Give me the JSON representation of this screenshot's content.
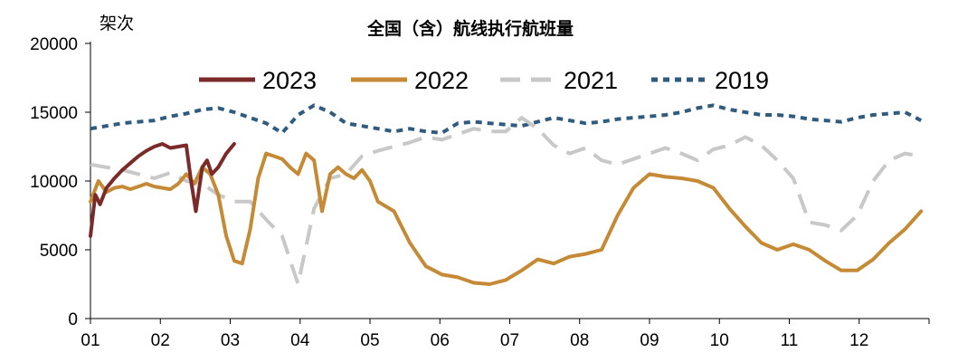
{
  "chart_data": {
    "type": "line",
    "title": "全国（含）航线执行航班量",
    "ylabel": "架次",
    "xlabel": "",
    "ylim": [
      0,
      20000
    ],
    "yticks": [
      0,
      5000,
      10000,
      15000,
      20000
    ],
    "x_tick_labels": [
      "01",
      "02",
      "03",
      "04",
      "05",
      "06",
      "07",
      "08",
      "09",
      "10",
      "11",
      "12"
    ],
    "x_unit": "week",
    "legend_position": "top",
    "grid": false,
    "series": [
      {
        "name": "2023",
        "color": "#7b2a2a",
        "style": "solid",
        "x": [
          0,
          0.3,
          0.6,
          1,
          1.5,
          2,
          2.5,
          3,
          3.5,
          4,
          4.5,
          5,
          5.5,
          6,
          6.3,
          6.6,
          7,
          7.3,
          7.6,
          8,
          8.5,
          9
        ],
        "y": [
          6000,
          9000,
          8300,
          9500,
          10200,
          10800,
          11300,
          11800,
          12200,
          12500,
          12700,
          12400,
          12500,
          12600,
          10000,
          7800,
          11000,
          11500,
          10500,
          11000,
          12000,
          12700
        ]
      },
      {
        "name": "2022",
        "color": "#c58a35",
        "style": "solid",
        "x": [
          0,
          0.5,
          1,
          1.5,
          2,
          2.5,
          3,
          3.5,
          4,
          4.5,
          5,
          5.5,
          6,
          6.5,
          7,
          7.5,
          8,
          8.5,
          9,
          9.5,
          10,
          10.5,
          11,
          11.5,
          12,
          12.5,
          13,
          13.5,
          14,
          14.5,
          15,
          15.5,
          16,
          16.5,
          17,
          17.5,
          18,
          19,
          20,
          21,
          22,
          23,
          24,
          25,
          26,
          27,
          28,
          29,
          30,
          31,
          32,
          33,
          34,
          35,
          36,
          37,
          38,
          39,
          40,
          41,
          42,
          43,
          44,
          45,
          46,
          47,
          48,
          49,
          50,
          51,
          52
        ],
        "y": [
          8500,
          10000,
          9200,
          9500,
          9600,
          9400,
          9600,
          9800,
          9600,
          9500,
          9400,
          9800,
          10500,
          9800,
          11000,
          10500,
          9000,
          6000,
          4200,
          4000,
          6500,
          10200,
          12000,
          11800,
          11600,
          11000,
          10500,
          12000,
          11500,
          7800,
          10500,
          11000,
          10500,
          10200,
          10800,
          10000,
          8500,
          7800,
          5500,
          3800,
          3200,
          3000,
          2600,
          2500,
          2800,
          3500,
          4300,
          4000,
          4500,
          4700,
          5000,
          7500,
          9500,
          10500,
          10300,
          10200,
          10000,
          9500,
          8000,
          6700,
          5500,
          5000,
          5400,
          5000,
          4200,
          3500,
          3500,
          4300,
          5500,
          6500,
          7800
        ]
      },
      {
        "name": "2021",
        "color": "#c8c8c8",
        "style": "dash",
        "x": [
          0,
          1,
          2,
          3,
          4,
          5,
          6,
          7,
          8,
          9,
          10,
          11,
          12,
          13,
          14,
          15,
          16,
          17,
          18,
          19,
          20,
          21,
          22,
          23,
          24,
          25,
          26,
          27,
          28,
          29,
          30,
          31,
          32,
          33,
          34,
          35,
          36,
          37,
          38,
          39,
          40,
          41,
          42,
          43,
          44,
          45,
          46,
          47,
          48,
          49,
          50,
          51,
          52
        ],
        "y": [
          11200,
          11000,
          10800,
          10500,
          10200,
          10600,
          10000,
          9800,
          9000,
          8500,
          8500,
          7200,
          6000,
          2500,
          8000,
          10200,
          10500,
          11800,
          12200,
          12500,
          12800,
          13200,
          13000,
          13400,
          13800,
          13600,
          13600,
          14600,
          13800,
          12600,
          12000,
          12400,
          11500,
          11200,
          11600,
          12000,
          12400,
          12000,
          11500,
          12300,
          12600,
          13200,
          12600,
          11500,
          10200,
          7000,
          6800,
          6400,
          7500,
          10000,
          11500,
          12000,
          11800
        ]
      },
      {
        "name": "2019",
        "color": "#2f5b7f",
        "style": "dot",
        "x": [
          0,
          1,
          2,
          3,
          4,
          5,
          6,
          7,
          8,
          9,
          10,
          11,
          12,
          13,
          14,
          15,
          16,
          17,
          18,
          19,
          20,
          21,
          22,
          23,
          24,
          25,
          26,
          27,
          28,
          29,
          30,
          31,
          32,
          33,
          34,
          35,
          36,
          37,
          38,
          39,
          40,
          41,
          42,
          43,
          44,
          45,
          46,
          47,
          48,
          49,
          50,
          51,
          52
        ],
        "y": [
          13800,
          14000,
          14200,
          14300,
          14400,
          14700,
          14900,
          15200,
          15300,
          15000,
          14600,
          14200,
          13500,
          14800,
          15500,
          15000,
          14200,
          14000,
          13800,
          13600,
          13800,
          13600,
          13500,
          14200,
          14300,
          14200,
          14100,
          14000,
          14300,
          14600,
          14400,
          14200,
          14300,
          14500,
          14600,
          14700,
          14800,
          15000,
          15300,
          15500,
          15200,
          15000,
          14800,
          14800,
          14700,
          14500,
          14400,
          14300,
          14600,
          14800,
          14900,
          15000,
          14400
        ]
      }
    ]
  }
}
